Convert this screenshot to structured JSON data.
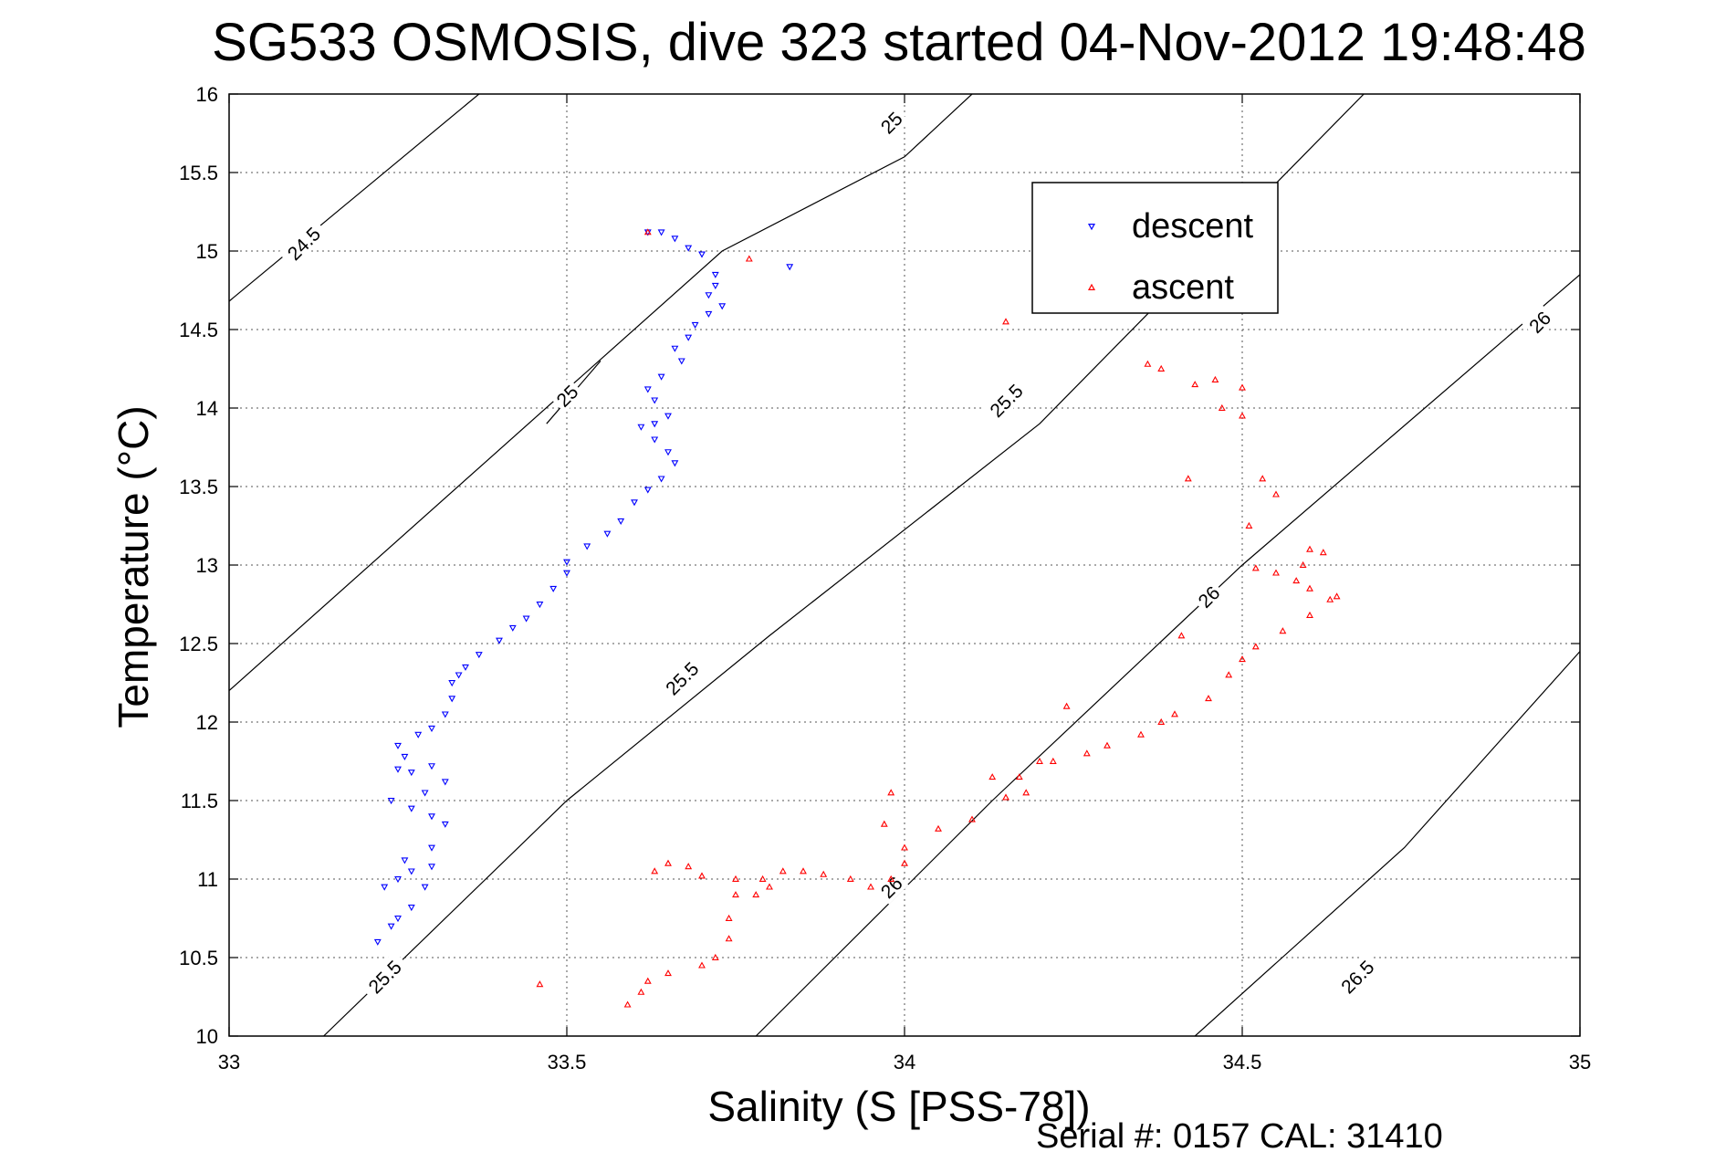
{
  "chart_data": {
    "type": "scatter",
    "title": "SG533 OSMOSIS, dive 323 started 04-Nov-2012 19:48:48",
    "xlabel": "Salinity (S [PSS-78])",
    "ylabel": "Temperature (°C)",
    "xlim": [
      33,
      35
    ],
    "ylim": [
      10,
      16
    ],
    "xticks": [
      "33",
      "33.5",
      "34",
      "34.5",
      "35"
    ],
    "yticks": [
      "10",
      "10.5",
      "11",
      "11.5",
      "12",
      "12.5",
      "13",
      "13.5",
      "14",
      "14.5",
      "15",
      "15.5",
      "16"
    ],
    "grid": true,
    "legend_position": "top-right",
    "footer": "Serial #: 0157  CAL: 31410",
    "density_contours": [
      {
        "label": "24.5",
        "points": [
          [
            33,
            14.68
          ],
          [
            33.37,
            16
          ]
        ]
      },
      {
        "label": "25",
        "points": [
          [
            33,
            12.2
          ],
          [
            33.73,
            15.0
          ],
          [
            34.0,
            15.6
          ],
          [
            34.1,
            16
          ]
        ]
      },
      {
        "label": "25",
        "points": [
          [
            33.47,
            13.9
          ],
          [
            33.55,
            14.3
          ]
        ]
      },
      {
        "label": "25.5",
        "points": [
          [
            33.14,
            10
          ],
          [
            33.5,
            11.5
          ],
          [
            33.8,
            12.55
          ],
          [
            34.2,
            13.9
          ],
          [
            34.68,
            16
          ]
        ]
      },
      {
        "label": "26",
        "points": [
          [
            33.78,
            10
          ],
          [
            34.13,
            11.5
          ],
          [
            34.5,
            13.0
          ],
          [
            35,
            14.85
          ]
        ]
      },
      {
        "label": "26.5",
        "points": [
          [
            34.43,
            10
          ],
          [
            34.74,
            11.2
          ],
          [
            35,
            12.45
          ]
        ]
      }
    ],
    "contour_labels": [
      {
        "text": "24.5",
        "x": 33.11,
        "y": 15.05
      },
      {
        "text": "25",
        "x": 33.98,
        "y": 15.82
      },
      {
        "text": "25",
        "x": 33.5,
        "y": 14.08
      },
      {
        "text": "25.5",
        "x": 33.67,
        "y": 12.28
      },
      {
        "text": "25.5",
        "x": 34.15,
        "y": 14.05
      },
      {
        "text": "25.5",
        "x": 33.23,
        "y": 10.38
      },
      {
        "text": "26",
        "x": 34.94,
        "y": 14.55
      },
      {
        "text": "26",
        "x": 34.45,
        "y": 12.8
      },
      {
        "text": "26",
        "x": 33.98,
        "y": 10.95
      },
      {
        "text": "26.5",
        "x": 34.67,
        "y": 10.38
      }
    ],
    "series": [
      {
        "name": "descent",
        "color": "#0000ff",
        "marker": "triangle-down",
        "points": [
          [
            33.22,
            10.6
          ],
          [
            33.24,
            10.7
          ],
          [
            33.25,
            10.75
          ],
          [
            33.27,
            10.82
          ],
          [
            33.29,
            10.95
          ],
          [
            33.25,
            11.0
          ],
          [
            33.23,
            10.95
          ],
          [
            33.27,
            11.05
          ],
          [
            33.3,
            11.08
          ],
          [
            33.26,
            11.12
          ],
          [
            33.3,
            11.2
          ],
          [
            33.32,
            11.35
          ],
          [
            33.3,
            11.4
          ],
          [
            33.27,
            11.45
          ],
          [
            33.24,
            11.5
          ],
          [
            33.29,
            11.55
          ],
          [
            33.32,
            11.62
          ],
          [
            33.27,
            11.68
          ],
          [
            33.25,
            11.7
          ],
          [
            33.3,
            11.72
          ],
          [
            33.26,
            11.78
          ],
          [
            33.25,
            11.85
          ],
          [
            33.28,
            11.92
          ],
          [
            33.3,
            11.96
          ],
          [
            33.32,
            12.05
          ],
          [
            33.33,
            12.15
          ],
          [
            33.33,
            12.25
          ],
          [
            33.34,
            12.3
          ],
          [
            33.35,
            12.35
          ],
          [
            33.37,
            12.43
          ],
          [
            33.4,
            12.52
          ],
          [
            33.42,
            12.6
          ],
          [
            33.44,
            12.66
          ],
          [
            33.46,
            12.75
          ],
          [
            33.48,
            12.85
          ],
          [
            33.5,
            12.95
          ],
          [
            33.5,
            13.02
          ],
          [
            33.53,
            13.12
          ],
          [
            33.56,
            13.2
          ],
          [
            33.58,
            13.28
          ],
          [
            33.6,
            13.4
          ],
          [
            33.62,
            13.48
          ],
          [
            33.64,
            13.55
          ],
          [
            33.66,
            13.65
          ],
          [
            33.65,
            13.72
          ],
          [
            33.63,
            13.8
          ],
          [
            33.61,
            13.88
          ],
          [
            33.63,
            13.9
          ],
          [
            33.65,
            13.95
          ],
          [
            33.63,
            14.05
          ],
          [
            33.62,
            14.12
          ],
          [
            33.64,
            14.2
          ],
          [
            33.67,
            14.3
          ],
          [
            33.66,
            14.38
          ],
          [
            33.68,
            14.45
          ],
          [
            33.69,
            14.53
          ],
          [
            33.71,
            14.6
          ],
          [
            33.73,
            14.65
          ],
          [
            33.71,
            14.72
          ],
          [
            33.72,
            14.78
          ],
          [
            33.72,
            14.85
          ],
          [
            33.62,
            15.12
          ],
          [
            33.64,
            15.12
          ],
          [
            33.66,
            15.08
          ],
          [
            33.68,
            15.02
          ],
          [
            33.7,
            14.98
          ],
          [
            33.83,
            14.9
          ]
        ]
      },
      {
        "name": "ascent",
        "color": "#ff0000",
        "marker": "triangle-up",
        "points": [
          [
            33.46,
            10.33
          ],
          [
            33.59,
            10.2
          ],
          [
            33.61,
            10.28
          ],
          [
            33.62,
            10.35
          ],
          [
            33.65,
            10.4
          ],
          [
            33.7,
            10.45
          ],
          [
            33.72,
            10.5
          ],
          [
            33.74,
            10.62
          ],
          [
            33.74,
            10.75
          ],
          [
            33.75,
            10.9
          ],
          [
            33.75,
            11.0
          ],
          [
            33.65,
            11.1
          ],
          [
            33.63,
            11.05
          ],
          [
            33.7,
            11.02
          ],
          [
            33.79,
            11.0
          ],
          [
            33.78,
            10.9
          ],
          [
            33.8,
            10.95
          ],
          [
            33.82,
            11.05
          ],
          [
            33.85,
            11.05
          ],
          [
            33.88,
            11.03
          ],
          [
            33.92,
            11.0
          ],
          [
            33.95,
            10.95
          ],
          [
            33.98,
            11.0
          ],
          [
            34.0,
            11.1
          ],
          [
            34.0,
            11.2
          ],
          [
            33.97,
            11.35
          ],
          [
            33.98,
            11.55
          ],
          [
            34.05,
            11.32
          ],
          [
            34.1,
            11.38
          ],
          [
            34.15,
            11.52
          ],
          [
            34.18,
            11.55
          ],
          [
            34.17,
            11.65
          ],
          [
            34.22,
            11.75
          ],
          [
            34.27,
            11.8
          ],
          [
            34.3,
            11.85
          ],
          [
            34.35,
            11.92
          ],
          [
            34.38,
            12.0
          ],
          [
            34.4,
            12.05
          ],
          [
            34.45,
            12.15
          ],
          [
            34.48,
            12.3
          ],
          [
            34.5,
            12.4
          ],
          [
            34.52,
            12.48
          ],
          [
            34.56,
            12.58
          ],
          [
            34.6,
            12.68
          ],
          [
            34.63,
            12.78
          ],
          [
            34.64,
            12.8
          ],
          [
            34.6,
            12.85
          ],
          [
            34.58,
            12.9
          ],
          [
            34.55,
            12.95
          ],
          [
            34.52,
            12.98
          ],
          [
            34.59,
            13.0
          ],
          [
            34.62,
            13.08
          ],
          [
            34.6,
            13.1
          ],
          [
            34.51,
            13.25
          ],
          [
            34.55,
            13.45
          ],
          [
            34.53,
            13.55
          ],
          [
            34.5,
            13.95
          ],
          [
            34.47,
            14.0
          ],
          [
            34.43,
            14.15
          ],
          [
            34.46,
            14.18
          ],
          [
            34.5,
            14.13
          ],
          [
            34.38,
            14.25
          ],
          [
            34.36,
            14.28
          ],
          [
            34.15,
            14.55
          ],
          [
            34.13,
            11.65
          ],
          [
            34.24,
            12.1
          ],
          [
            34.41,
            12.55
          ],
          [
            34.42,
            13.55
          ],
          [
            34.2,
            11.75
          ],
          [
            33.77,
            14.95
          ],
          [
            33.62,
            15.12
          ],
          [
            33.68,
            11.08
          ]
        ]
      }
    ]
  }
}
